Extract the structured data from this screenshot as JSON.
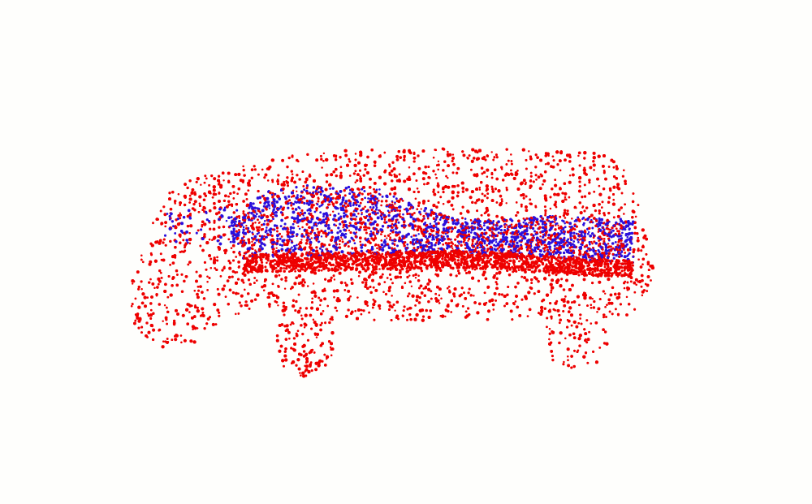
{
  "scene": {
    "background_color": "#fefefc",
    "subject": "point-cloud-car",
    "point_groups": [
      {
        "name": "body",
        "color": "#ee0000"
      },
      {
        "name": "seat-band",
        "color": "#2a10dd"
      }
    ]
  }
}
